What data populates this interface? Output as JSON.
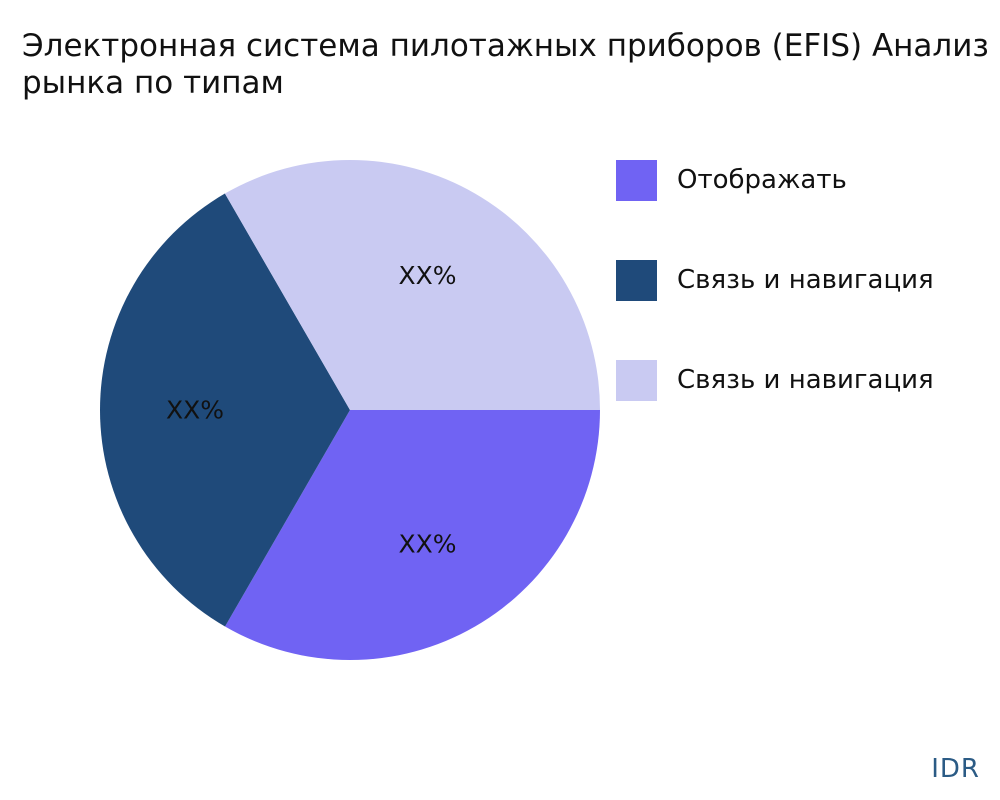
{
  "chart_data": {
    "type": "pie",
    "title_lines": [
      "Электронная система пилотажных приборов (EFIS) Анализ",
      "рынка по типам"
    ],
    "slices": [
      {
        "name": "Отображать",
        "value": 33.33,
        "label": "XX%",
        "color": "#7063f3"
      },
      {
        "name": "Связь и навигация",
        "value": 33.33,
        "label": "XX%",
        "color": "#1f4a7a"
      },
      {
        "name": "Связь и навигация",
        "value": 33.34,
        "label": "XX%",
        "color": "#c9caf2"
      }
    ],
    "legend_position": "right"
  },
  "watermark": "IDR"
}
